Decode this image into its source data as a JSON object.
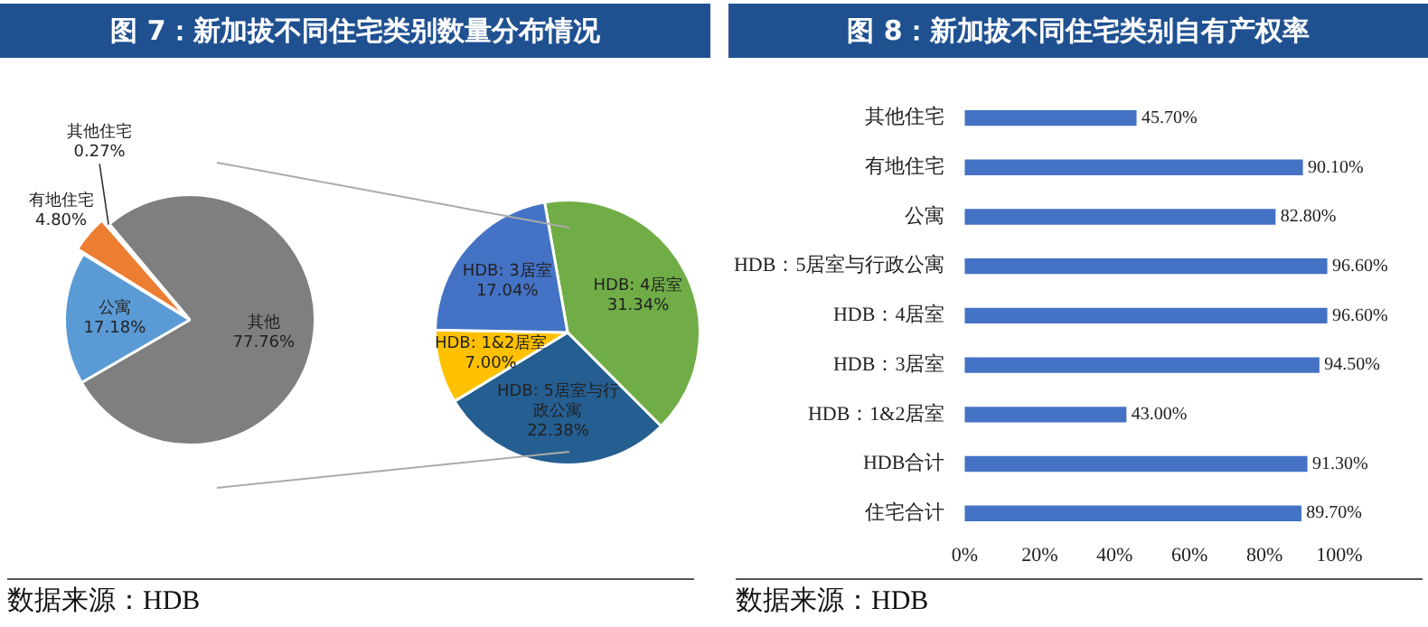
{
  "chart_data": [
    {
      "type": "pie",
      "title": "图 7：新加拔不同住宅类别数量分布情况",
      "categories": [
        "其他",
        "公寓",
        "有地住宅",
        "其他住宅"
      ],
      "values": [
        77.76,
        17.18,
        4.8,
        0.27
      ],
      "colors": [
        "#7f7f7f",
        "#5b9bd5",
        "#ed7d31",
        "#a5a5a5"
      ],
      "value_labels": [
        "77.76%",
        "17.18%",
        "4.80%",
        "0.27%"
      ],
      "annotations": [
        "数据来源：HDB"
      ]
    },
    {
      "type": "pie",
      "categories": [
        "HDB: 4居室",
        "HDB: 5居室与行政公寓",
        "HDB: 1&2居室",
        "HDB: 3居室"
      ],
      "values": [
        31.34,
        22.38,
        7.0,
        17.04
      ],
      "colors": [
        "#70ad47",
        "#255e91",
        "#ffc000",
        "#4472c4"
      ],
      "value_labels": [
        "31.34%",
        "22.38%",
        "7.00%",
        "17.04%"
      ]
    },
    {
      "type": "bar",
      "orientation": "horizontal",
      "title": "图 8：新加拔不同住宅类别自有产权率",
      "categories": [
        "其他住宅",
        "有地住宅",
        "公寓",
        "HDB：5居室与行政公寓",
        "HDB：4居室",
        "HDB：3居室",
        "HDB：1&2居室",
        "HDB合计",
        "住宅合计"
      ],
      "values": [
        45.7,
        90.1,
        82.8,
        96.6,
        96.6,
        94.5,
        43.0,
        91.3,
        89.7
      ],
      "color": "#4472c4",
      "value_labels": [
        "45.70%",
        "90.10%",
        "82.80%",
        "96.60%",
        "96.60%",
        "94.50%",
        "43.00%",
        "91.30%",
        "89.70%"
      ],
      "xlim": [
        0,
        100
      ],
      "xticks": [
        {
          "value": 0,
          "label": "0%"
        },
        {
          "value": 20,
          "label": "20%"
        },
        {
          "value": 40,
          "label": "40%"
        },
        {
          "value": 60,
          "label": "60%"
        },
        {
          "value": 80,
          "label": "80%"
        },
        {
          "value": 100,
          "label": "100%"
        }
      ],
      "annotations": [
        "数据来源：HDB"
      ]
    }
  ]
}
